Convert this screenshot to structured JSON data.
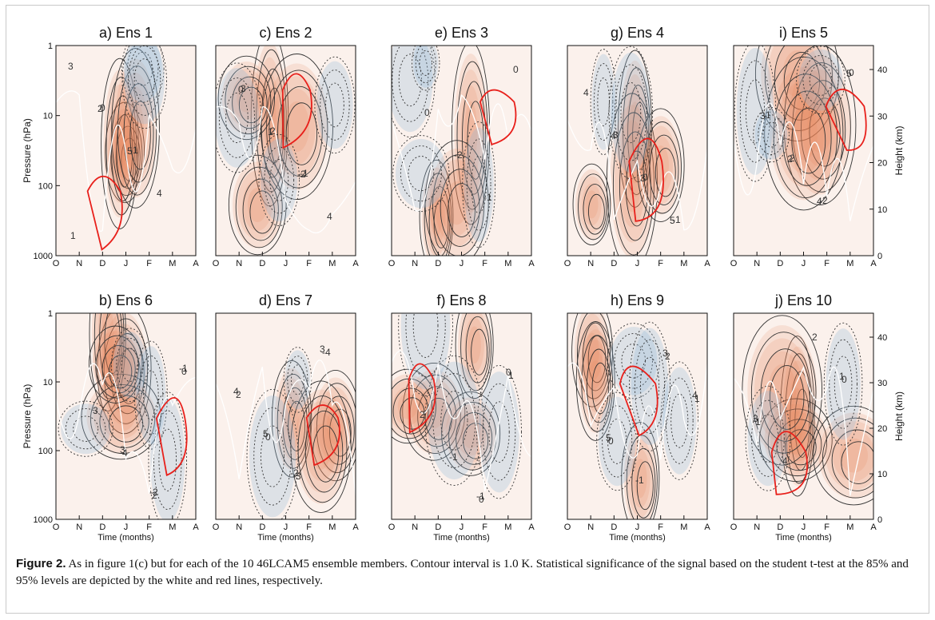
{
  "figure": {
    "caption_label": "Figure 2.",
    "caption_text": "As in figure 1(c) but for each of the 10 46LCAM5 ensemble members. Contour interval is 1.0 K. Statistical significance of the signal based on the student t-test at the 85% and 95% levels are depicted by the white and red lines, respectively."
  },
  "chart_data": {
    "type": "heatmap",
    "x_ticks": [
      "O",
      "N",
      "D",
      "J",
      "F",
      "M",
      "A"
    ],
    "xlabel": "Time (months)",
    "left_ylabel": "Pressure (hPa)",
    "left_y_ticks": [
      "1",
      "10",
      "100",
      "1000"
    ],
    "right_ylabel": "Height (km)",
    "right_y_ticks": [
      "40",
      "30",
      "20",
      "10",
      "0"
    ],
    "contour_interval_K": 1.0,
    "colors": {
      "warm": "#e8835a",
      "cool": "#8fb7d9",
      "sig95": "#e8201b",
      "sig85": "#ffffff"
    },
    "panels": [
      {
        "title": "a) Ens 1",
        "row": 0,
        "col": 0,
        "contour_labels": [
          "3",
          "2",
          "5",
          "4",
          "1",
          "0",
          "-1"
        ]
      },
      {
        "title": "c) Ens 2",
        "row": 0,
        "col": 1,
        "contour_labels": [
          "0",
          "1",
          "-2",
          "4",
          "3",
          "2",
          "-1"
        ]
      },
      {
        "title": "e) Ens 3",
        "row": 0,
        "col": 2,
        "contour_labels": [
          "0",
          "-2",
          "-1",
          "0"
        ]
      },
      {
        "title": "g) Ens 4",
        "row": 0,
        "col": 3,
        "contour_labels": [
          "4",
          "3",
          "5",
          "4",
          "3",
          "0",
          "-1"
        ]
      },
      {
        "title": "i) Ens 5",
        "row": 0,
        "col": 4,
        "contour_labels": [
          "2",
          "4",
          "5",
          "3",
          "2",
          "-2",
          "0",
          "-1"
        ]
      },
      {
        "title": "b) Ens 6",
        "row": 1,
        "col": 0,
        "contour_labels": [
          "3",
          "-2",
          "-1",
          "3",
          "4",
          "2",
          "0"
        ]
      },
      {
        "title": "d) Ens 7",
        "row": 1,
        "col": 1,
        "contour_labels": [
          "-2",
          "3",
          "4",
          "5",
          "-3",
          "-4",
          "2",
          "0"
        ]
      },
      {
        "title": "f) Ens 8",
        "row": 1,
        "col": 2,
        "contour_labels": [
          "-1",
          "0",
          "2",
          "-1",
          "0",
          "1"
        ]
      },
      {
        "title": "h) Ens 9",
        "row": 1,
        "col": 3,
        "contour_labels": [
          "3",
          "4",
          "5",
          "-1",
          "2",
          "1",
          "0"
        ]
      },
      {
        "title": "j) Ens 10",
        "row": 1,
        "col": 4,
        "contour_labels": [
          "1",
          "3",
          "4",
          "2",
          "0",
          "1"
        ]
      }
    ]
  }
}
